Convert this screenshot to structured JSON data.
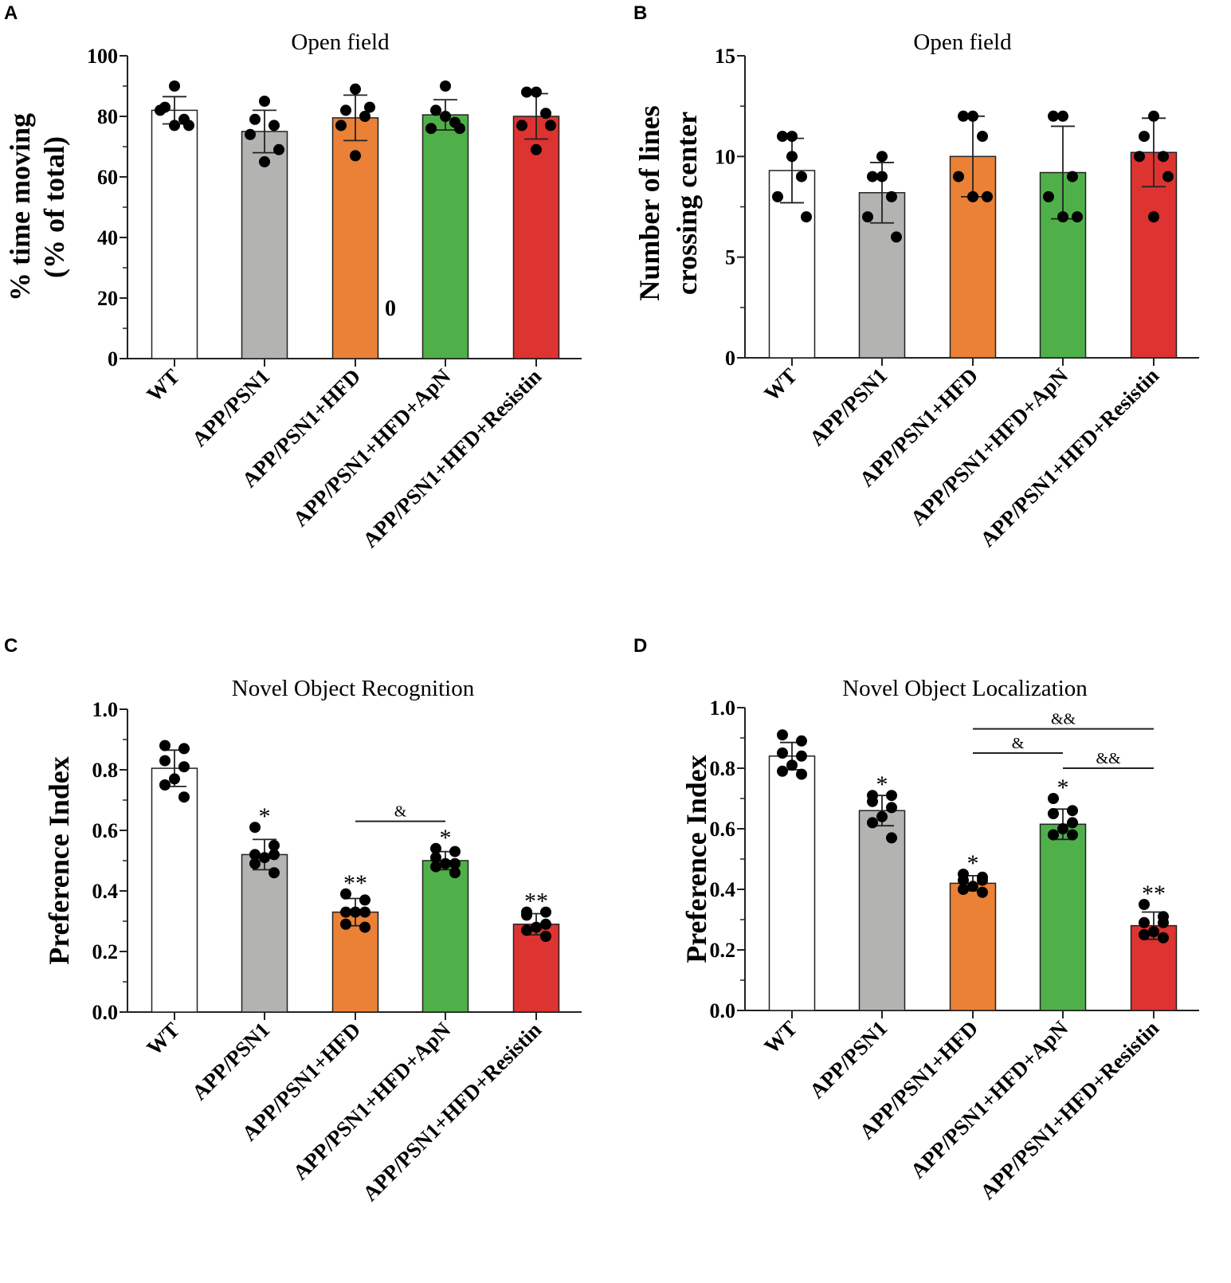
{
  "colors": {
    "WT": "#ffffff",
    "APP/PSN1": "#b3b3b1",
    "APP/PSN1+HFD": "#ea8136",
    "APP/PSN1+HFD+ApN": "#4fb04a",
    "APP/PSN1+HFD+Resistin": "#dd3331"
  },
  "chart_data": [
    {
      "panel": "A",
      "type": "bar",
      "title": "Open field",
      "ylabel": [
        "% time moving",
        "(% of total)"
      ],
      "ylim": [
        0,
        100
      ],
      "yticks": [
        0,
        20,
        40,
        60,
        80,
        100
      ],
      "ytick_labels": [
        "0",
        "20",
        "40",
        "60",
        "80",
        "100"
      ],
      "categories": [
        "WT",
        "APP/PSN1",
        "APP/PSN1+HFD",
        "APP/PSN1+HFD+ApN",
        "APP/PSN1+HFD+Resistin"
      ],
      "values": [
        82,
        75,
        79.5,
        80.5,
        80
      ],
      "sd": [
        4.5,
        7,
        7.5,
        5,
        7.5
      ],
      "points": [
        [
          90,
          83,
          79,
          82,
          77,
          77
        ],
        [
          85,
          79,
          77,
          74,
          69,
          65
        ],
        [
          89,
          82,
          80,
          77,
          83,
          67
        ],
        [
          90,
          82,
          78,
          76,
          76,
          80
        ],
        [
          88,
          88,
          81,
          77,
          77,
          69
        ]
      ],
      "stars": [
        "",
        "",
        "",
        "",
        ""
      ],
      "extra_text": "0"
    },
    {
      "panel": "B",
      "type": "bar",
      "title": "Open field",
      "ylabel": [
        "Number of lines",
        "crossing center"
      ],
      "ylim": [
        0,
        15
      ],
      "yticks": [
        0,
        5,
        10,
        15
      ],
      "ytick_labels": [
        "0",
        "5",
        "10",
        "15"
      ],
      "categories": [
        "WT",
        "APP/PSN1",
        "APP/PSN1+HFD",
        "APP/PSN1+HFD+ApN",
        "APP/PSN1+HFD+Resistin"
      ],
      "values": [
        9.3,
        8.2,
        10,
        9.2,
        10.2
      ],
      "sd": [
        1.6,
        1.5,
        2,
        2.3,
        1.7
      ],
      "points": [
        [
          11,
          11,
          9,
          8,
          7,
          10
        ],
        [
          10,
          9,
          8,
          7,
          6,
          9
        ],
        [
          12,
          12,
          11,
          9,
          8,
          8
        ],
        [
          12,
          12,
          9,
          8,
          7,
          7
        ],
        [
          12,
          11,
          10,
          10,
          9,
          7
        ]
      ],
      "stars": [
        "",
        "",
        "",
        "",
        ""
      ]
    },
    {
      "panel": "C",
      "type": "bar",
      "title": "Novel Object Recognition",
      "ylabel": [
        "Preference Index"
      ],
      "ylim": [
        0,
        1.0
      ],
      "yticks": [
        0,
        0.2,
        0.4,
        0.6,
        0.8,
        1.0
      ],
      "ytick_labels": [
        "0.0",
        "0.2",
        "0.4",
        "0.6",
        "0.8",
        "1.0"
      ],
      "categories": [
        "WT",
        "APP/PSN1",
        "APP/PSN1+HFD",
        "APP/PSN1+HFD+ApN",
        "APP/PSN1+HFD+Resistin"
      ],
      "values": [
        0.805,
        0.52,
        0.33,
        0.5,
        0.29
      ],
      "sd": [
        0.06,
        0.05,
        0.045,
        0.03,
        0.035
      ],
      "points": [
        [
          0.88,
          0.87,
          0.83,
          0.81,
          0.77,
          0.75,
          0.71
        ],
        [
          0.61,
          0.55,
          0.52,
          0.52,
          0.51,
          0.49,
          0.46
        ],
        [
          0.39,
          0.37,
          0.33,
          0.33,
          0.33,
          0.29,
          0.28
        ],
        [
          0.54,
          0.53,
          0.51,
          0.49,
          0.49,
          0.48,
          0.46
        ],
        [
          0.33,
          0.33,
          0.32,
          0.29,
          0.28,
          0.27,
          0.25
        ]
      ],
      "stars": [
        "",
        "*",
        "**",
        "*",
        "**"
      ],
      "brackets": [
        {
          "from": 2,
          "to": 3,
          "y": 0.63,
          "label": "&"
        }
      ]
    },
    {
      "panel": "D",
      "type": "bar",
      "title": "Novel Object Localization",
      "ylabel": [
        "Preference Index"
      ],
      "ylim": [
        0,
        1.0
      ],
      "yticks": [
        0,
        0.2,
        0.4,
        0.6,
        0.8,
        1.0
      ],
      "ytick_labels": [
        "0.0",
        "0.2",
        "0.4",
        "0.6",
        "0.8",
        "1.0"
      ],
      "categories": [
        "WT",
        "APP/PSN1",
        "APP/PSN1+HFD",
        "APP/PSN1+HFD+ApN",
        "APP/PSN1+HFD+Resistin"
      ],
      "values": [
        0.84,
        0.66,
        0.42,
        0.615,
        0.28
      ],
      "sd": [
        0.045,
        0.05,
        0.025,
        0.05,
        0.045
      ],
      "points": [
        [
          0.91,
          0.89,
          0.85,
          0.84,
          0.81,
          0.79,
          0.78
        ],
        [
          0.71,
          0.71,
          0.69,
          0.67,
          0.64,
          0.62,
          0.57
        ],
        [
          0.45,
          0.44,
          0.43,
          0.43,
          0.41,
          0.4,
          0.39
        ],
        [
          0.7,
          0.66,
          0.65,
          0.62,
          0.6,
          0.58,
          0.58
        ],
        [
          0.35,
          0.31,
          0.29,
          0.29,
          0.26,
          0.25,
          0.24
        ]
      ],
      "stars": [
        "",
        "*",
        "*",
        "*",
        "**"
      ],
      "brackets": [
        {
          "from": 2,
          "to": 4,
          "y": 0.93,
          "label": "&&"
        },
        {
          "from": 2,
          "to": 3,
          "y": 0.85,
          "label": "&"
        },
        {
          "from": 3,
          "to": 4,
          "y": 0.8,
          "label": "&&"
        }
      ]
    }
  ]
}
